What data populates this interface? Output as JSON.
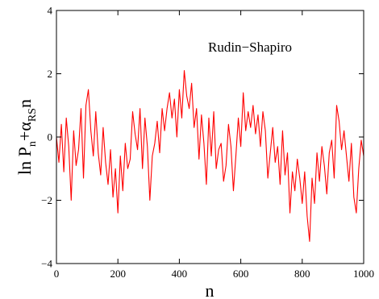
{
  "chart_data": {
    "type": "line",
    "xlabel": "n",
    "ylabel": {
      "base": "ln P",
      "base_sub": "n",
      "plus": "+α",
      "alpha_sub": "RS",
      "tail": "n"
    },
    "annotation": "Rudin−Shapiro",
    "xlim": [
      0,
      1000
    ],
    "ylim": [
      -4,
      4
    ],
    "xticks": [
      0,
      200,
      400,
      600,
      800,
      1000
    ],
    "yticks": [
      -4,
      -2,
      0,
      2,
      4
    ],
    "xtick_labels": [
      "0",
      "200",
      "400",
      "600",
      "800",
      "1000"
    ],
    "ytick_labels": [
      "−4",
      "−2",
      "0",
      "2",
      "4"
    ],
    "grid": false,
    "series": [
      {
        "color": "#ff0000",
        "x": [
          0,
          8,
          16,
          24,
          32,
          40,
          48,
          56,
          64,
          72,
          80,
          88,
          96,
          104,
          112,
          120,
          128,
          136,
          144,
          152,
          160,
          168,
          176,
          184,
          192,
          200,
          208,
          216,
          224,
          232,
          240,
          248,
          256,
          264,
          272,
          280,
          288,
          296,
          304,
          312,
          320,
          328,
          336,
          344,
          352,
          360,
          368,
          376,
          384,
          392,
          400,
          408,
          416,
          424,
          432,
          440,
          448,
          456,
          464,
          472,
          480,
          488,
          496,
          504,
          512,
          520,
          528,
          536,
          544,
          552,
          560,
          568,
          576,
          584,
          592,
          600,
          608,
          616,
          624,
          632,
          640,
          648,
          656,
          664,
          672,
          680,
          688,
          696,
          704,
          712,
          720,
          728,
          736,
          744,
          752,
          760,
          768,
          776,
          784,
          792,
          800,
          808,
          816,
          824,
          832,
          840,
          848,
          856,
          864,
          872,
          880,
          888,
          896,
          904,
          912,
          920,
          928,
          936,
          944,
          952,
          960,
          968,
          976,
          984,
          992,
          1000
        ],
        "y": [
          0.0,
          -0.8,
          0.4,
          -1.1,
          0.6,
          -0.3,
          -2.0,
          0.2,
          -0.9,
          -0.4,
          0.9,
          -1.3,
          1.0,
          1.5,
          0.2,
          -0.6,
          0.8,
          -0.5,
          -1.2,
          0.3,
          -0.8,
          -1.5,
          -0.4,
          -1.9,
          -1.0,
          -2.4,
          -0.6,
          -1.7,
          -0.2,
          -1.0,
          -0.7,
          0.8,
          0.1,
          -0.4,
          0.9,
          -1.0,
          0.6,
          -0.3,
          -2.0,
          -0.6,
          -0.2,
          0.5,
          -0.5,
          0.9,
          0.2,
          0.9,
          1.4,
          0.6,
          1.2,
          0.0,
          1.5,
          0.6,
          2.1,
          1.3,
          0.9,
          1.7,
          0.3,
          0.9,
          -0.7,
          0.7,
          -0.2,
          -1.5,
          0.6,
          -0.6,
          0.8,
          -1.0,
          -0.4,
          -0.2,
          -1.4,
          -0.9,
          0.4,
          -0.3,
          -1.7,
          -0.6,
          0.6,
          -0.3,
          1.4,
          0.2,
          0.8,
          0.3,
          1.0,
          0.1,
          0.7,
          -0.3,
          0.8,
          0.2,
          -1.3,
          -0.5,
          0.3,
          -0.8,
          -0.3,
          -1.5,
          0.2,
          -1.2,
          -0.5,
          -2.4,
          -1.1,
          -1.7,
          -0.7,
          -1.3,
          -2.1,
          -1.1,
          -2.5,
          -3.3,
          -1.3,
          -2.1,
          -0.5,
          -1.4,
          -0.3,
          -0.9,
          -1.8,
          -0.5,
          -0.1,
          -1.3,
          1.0,
          0.5,
          -0.4,
          0.2,
          -0.6,
          -1.4,
          -0.2,
          -1.9,
          -2.4,
          -1.0,
          -0.1,
          -0.6
        ]
      }
    ]
  }
}
